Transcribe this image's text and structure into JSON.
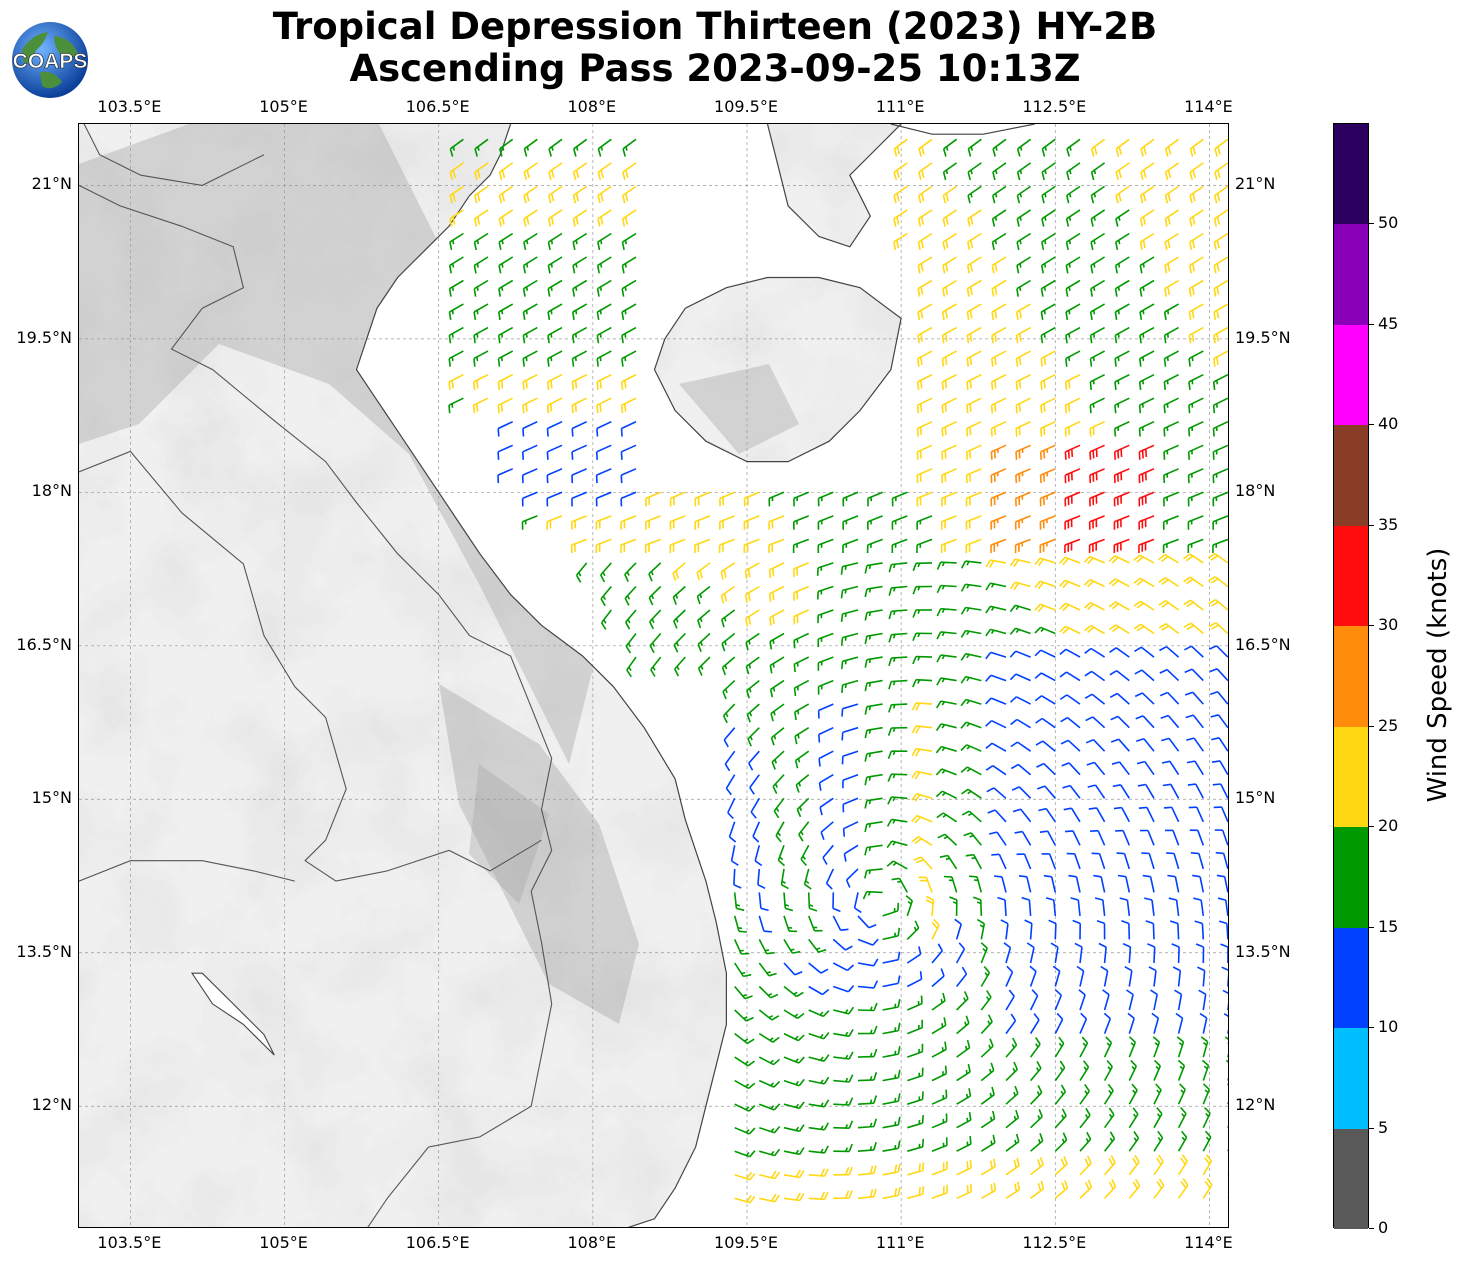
{
  "title_line1": "Tropical Depression Thirteen (2023) HY-2B",
  "title_line2": "Ascending Pass 2023-09-25 10:13Z",
  "logo_text": "COAPS",
  "lon_ticks": [
    "103.5°E",
    "105°E",
    "106.5°E",
    "108°E",
    "109.5°E",
    "111°E",
    "112.5°E",
    "114°E"
  ],
  "lat_ticks": [
    "21°N",
    "19.5°N",
    "18°N",
    "16.5°N",
    "15°N",
    "13.5°N",
    "12°N"
  ],
  "colorbar": {
    "label": "Wind Speed (knots)",
    "ticks": [
      "0",
      "5",
      "10",
      "15",
      "20",
      "25",
      "30",
      "35",
      "40",
      "45",
      "50"
    ],
    "bins": [
      {
        "min": 0,
        "max": 5,
        "color": "#595959"
      },
      {
        "min": 5,
        "max": 10,
        "color": "#00bfff"
      },
      {
        "min": 10,
        "max": 15,
        "color": "#0040ff"
      },
      {
        "min": 15,
        "max": 20,
        "color": "#009900"
      },
      {
        "min": 20,
        "max": 25,
        "color": "#ffd712"
      },
      {
        "min": 25,
        "max": 30,
        "color": "#ff8c0a"
      },
      {
        "min": 30,
        "max": 35,
        "color": "#ff0d0d"
      },
      {
        "min": 35,
        "max": 40,
        "color": "#8a3d26"
      },
      {
        "min": 40,
        "max": 45,
        "color": "#ff00ff"
      },
      {
        "min": 45,
        "max": 50,
        "color": "#8a00b8"
      },
      {
        "min": 50,
        "max": 55,
        "color": "#2b005e"
      }
    ]
  },
  "map_extent": {
    "lon": [
      103.0,
      114.2
    ],
    "lat": [
      10.8,
      21.6
    ]
  },
  "colors": {
    "land_shade": "#e6e6e6",
    "coast": "#444444",
    "grid": "#aaaaaa"
  }
}
